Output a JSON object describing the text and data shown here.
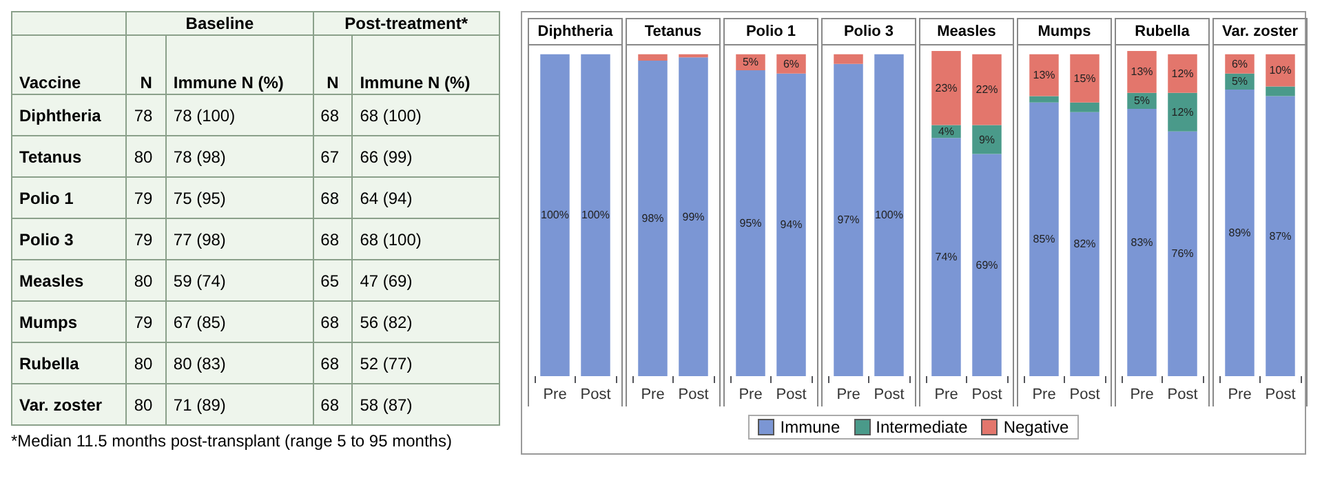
{
  "chart_data": [
    {
      "type": "other",
      "xlabel": "Vaccine",
      "data_labels": true,
      "categories": [
        "Diphtheria",
        "Tetanus",
        "Polio 1",
        "Polio 3",
        "Measles",
        "Mumps",
        "Rubella",
        "Var. zoster"
      ],
      "series": [
        {
          "name": "N",
          "values": [
            78,
            80,
            79,
            79,
            80,
            79,
            80,
            80
          ]
        },
        {
          "name": "Immune N (%)",
          "values": [
            78,
            78,
            75,
            77,
            59,
            67,
            80,
            71
          ],
          "value_labels": [
            "78 (100)",
            "78 (98)",
            "75 (95)",
            "77 (98)",
            "59 (74)",
            "67 (85)",
            "80 (83)",
            "71 (89)"
          ]
        },
        {
          "name": "N",
          "values": [
            68,
            67,
            68,
            68,
            65,
            68,
            68,
            68
          ]
        },
        {
          "name": "Immune N (%)",
          "values": [
            68,
            66,
            64,
            68,
            47,
            56,
            52,
            58
          ],
          "value_labels": [
            "68 (100)",
            "66 (99)",
            "64 (94)",
            "68 (100)",
            "47 (69)",
            "56 (82)",
            "52 (77)",
            "58 (87)"
          ]
        }
      ],
      "annotations": [
        "Baseline",
        "Post-treatment*",
        "*Median 11.5 months post-transplant (range 5 to 95 months)"
      ]
    },
    {
      "type": "bar",
      "stacked": true,
      "title": "Diphtheria",
      "categories": [
        "Pre",
        "Post"
      ],
      "ylim": [
        0,
        101
      ],
      "tick_labels": "x",
      "legend": "bottom",
      "series": [
        {
          "name": "Immune",
          "color": "#7b96d4",
          "values": [
            100,
            100
          ],
          "value_labels": [
            "100%",
            "100%"
          ]
        },
        {
          "name": "Intermediate",
          "color": "#4a9a8a",
          "values": [
            0,
            0
          ]
        },
        {
          "name": "Negative",
          "color": "#e3766c",
          "values": [
            0,
            0
          ]
        }
      ]
    },
    {
      "type": "bar",
      "stacked": true,
      "title": "Tetanus",
      "categories": [
        "Pre",
        "Post"
      ],
      "ylim": [
        0,
        101
      ],
      "tick_labels": "x",
      "series": [
        {
          "color": "#7b96d4",
          "values": [
            98,
            99
          ],
          "value_labels": [
            "98%",
            "99%"
          ]
        },
        {
          "color": "#4a9a8a",
          "values": [
            0,
            0
          ]
        },
        {
          "color": "#e3766c",
          "values": [
            2,
            1
          ]
        }
      ]
    },
    {
      "type": "bar",
      "stacked": true,
      "title": "Polio 1",
      "categories": [
        "Pre",
        "Post"
      ],
      "ylim": [
        0,
        101
      ],
      "tick_labels": "x",
      "series": [
        {
          "color": "#7b96d4",
          "values": [
            95,
            94
          ],
          "value_labels": [
            "95%",
            "94%"
          ]
        },
        {
          "color": "#4a9a8a",
          "values": [
            0,
            0
          ]
        },
        {
          "color": "#e3766c",
          "values": [
            5,
            6
          ],
          "value_labels": [
            "5%",
            "6%"
          ]
        }
      ]
    },
    {
      "type": "bar",
      "stacked": true,
      "title": "Polio 3",
      "categories": [
        "Pre",
        "Post"
      ],
      "ylim": [
        0,
        101
      ],
      "tick_labels": "x",
      "series": [
        {
          "color": "#7b96d4",
          "values": [
            97,
            100
          ],
          "value_labels": [
            "97%",
            "100%"
          ]
        },
        {
          "color": "#4a9a8a",
          "values": [
            0,
            0
          ]
        },
        {
          "color": "#e3766c",
          "values": [
            3,
            0
          ]
        }
      ]
    },
    {
      "type": "bar",
      "stacked": true,
      "title": "Measles",
      "categories": [
        "Pre",
        "Post"
      ],
      "ylim": [
        0,
        101
      ],
      "tick_labels": "x",
      "series": [
        {
          "color": "#7b96d4",
          "values": [
            74,
            69
          ],
          "value_labels": [
            "74%",
            "69%"
          ]
        },
        {
          "color": "#4a9a8a",
          "values": [
            4,
            9
          ],
          "value_labels": [
            "4%",
            "9%"
          ]
        },
        {
          "color": "#e3766c",
          "values": [
            23,
            22
          ],
          "value_labels": [
            "23%",
            "22%"
          ]
        }
      ]
    },
    {
      "type": "bar",
      "stacked": true,
      "title": "Mumps",
      "categories": [
        "Pre",
        "Post"
      ],
      "ylim": [
        0,
        101
      ],
      "tick_labels": "x",
      "series": [
        {
          "color": "#7b96d4",
          "values": [
            85,
            82
          ],
          "value_labels": [
            "85%",
            "82%"
          ]
        },
        {
          "color": "#4a9a8a",
          "values": [
            2,
            3
          ]
        },
        {
          "color": "#e3766c",
          "values": [
            13,
            15
          ],
          "value_labels": [
            "13%",
            "15%"
          ]
        }
      ]
    },
    {
      "type": "bar",
      "stacked": true,
      "title": "Rubella",
      "categories": [
        "Pre",
        "Post"
      ],
      "ylim": [
        0,
        101
      ],
      "tick_labels": "x",
      "series": [
        {
          "color": "#7b96d4",
          "values": [
            83,
            76
          ],
          "value_labels": [
            "83%",
            "76%"
          ]
        },
        {
          "color": "#4a9a8a",
          "values": [
            5,
            12
          ],
          "value_labels": [
            "5%",
            "12%"
          ]
        },
        {
          "color": "#e3766c",
          "values": [
            13,
            12
          ],
          "value_labels": [
            "13%",
            "12%"
          ]
        }
      ]
    },
    {
      "type": "bar",
      "stacked": true,
      "title": "Var. zoster",
      "categories": [
        "Pre",
        "Post"
      ],
      "ylim": [
        0,
        101
      ],
      "tick_labels": "x",
      "series": [
        {
          "color": "#7b96d4",
          "values": [
            89,
            87
          ],
          "value_labels": [
            "89%",
            "87%"
          ]
        },
        {
          "color": "#4a9a8a",
          "values": [
            5,
            3
          ],
          "value_labels": [
            "5%",
            null
          ]
        },
        {
          "color": "#e3766c",
          "values": [
            6,
            10
          ],
          "value_labels": [
            "6%",
            "10%"
          ]
        }
      ]
    }
  ]
}
